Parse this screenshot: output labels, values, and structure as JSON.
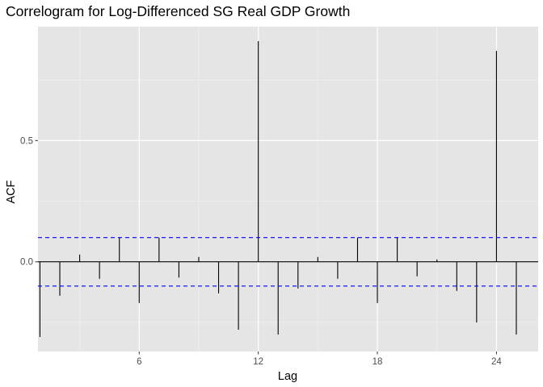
{
  "chart_data": {
    "type": "bar",
    "title": "Correlogram for Log-Differenced SG Real GDP Growth",
    "xlabel": "Lag",
    "ylabel": "ACF",
    "x_ticks": [
      6,
      12,
      18,
      24
    ],
    "y_ticks": [
      0.0,
      0.5
    ],
    "y_tick_labels": [
      "0.0",
      "0.5"
    ],
    "xlim": [
      0.9,
      26.1
    ],
    "ylim": [
      -0.37,
      0.97
    ],
    "grid": true,
    "confidence_bound": 0.1,
    "series": [
      {
        "lags": [
          1,
          2,
          3,
          4,
          5,
          6,
          7,
          8,
          9,
          10,
          11,
          12,
          13,
          14,
          15,
          16,
          17,
          18,
          19,
          20,
          21,
          22,
          23,
          24,
          25
        ],
        "values": [
          -0.31,
          -0.14,
          0.03,
          -0.07,
          0.1,
          -0.17,
          0.1,
          -0.065,
          0.02,
          -0.13,
          -0.28,
          0.91,
          -0.3,
          -0.11,
          0.02,
          -0.07,
          0.1,
          -0.17,
          0.1,
          -0.06,
          0.01,
          -0.12,
          -0.25,
          0.87,
          -0.3
        ]
      }
    ]
  },
  "colors": {
    "panel_bg": "#e5e5e5",
    "grid_major": "#ffffff",
    "grid_minor": "#f2f2f2",
    "bar": "#000000",
    "confidence_line": "#0000ff"
  }
}
